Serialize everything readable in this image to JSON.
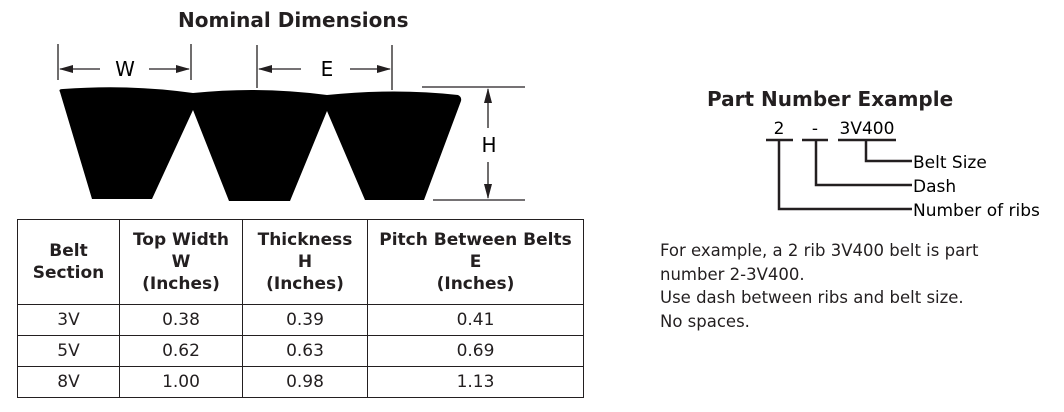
{
  "diagram": {
    "title": "Nominal Dimensions",
    "labels": {
      "w": "W",
      "e": "E",
      "h": "H"
    }
  },
  "table": {
    "headers": [
      [
        "Belt",
        "Section"
      ],
      [
        "Top Width",
        "W",
        "(Inches)"
      ],
      [
        "Thickness",
        "H",
        "(Inches)"
      ],
      [
        "Pitch Between Belts",
        "E",
        "(Inches)"
      ]
    ],
    "rows": [
      [
        "3V",
        "0.38",
        "0.39",
        "0.41"
      ],
      [
        "5V",
        "0.62",
        "0.63",
        "0.69"
      ],
      [
        "8V",
        "1.00",
        "0.98",
        "1.13"
      ]
    ]
  },
  "part_number": {
    "title": "Part Number Example",
    "parts": [
      "2",
      "-",
      "3V400"
    ],
    "callouts": [
      "Belt Size",
      "Dash",
      "Number of ribs"
    ],
    "description": [
      "For example, a 2 rib 3V400 belt is part",
      "number 2-3V400.",
      "Use dash between ribs and belt size.",
      "No spaces."
    ]
  }
}
